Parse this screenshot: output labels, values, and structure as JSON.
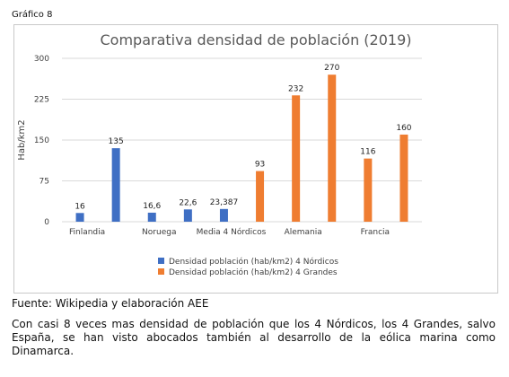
{
  "figure_label": "Gráfico 8",
  "source_text": "Fuente: Wikipedia y elaboración AEE",
  "body_text": "Con casi 8 veces mas densidad de población que los 4 Nórdicos, los 4 Grandes, salvo España, se han visto abocados también al desarrollo de la eólica marina como Dinamarca.",
  "colors": {
    "nordicos": "#3f6fc4",
    "grandes": "#ef7d31"
  },
  "chart_data": {
    "type": "bar",
    "title": "Comparativa densidad de población (2019)",
    "xlabel": "",
    "ylabel": "Hab/km2",
    "ylim": [
      0,
      300
    ],
    "yticks": [
      0,
      75,
      150,
      225,
      300
    ],
    "grid": true,
    "legend_position": "bottom",
    "categories": [
      "Finlandia",
      "",
      "Noruega",
      "",
      "Media 4 Nórdicos",
      "",
      "Alemania",
      "",
      "Francia",
      ""
    ],
    "series": [
      {
        "name": "Densidad población (hab/km2) 4 Nórdicos",
        "color": "#3f6fc4",
        "values": [
          16,
          135,
          16.6,
          22.6,
          23.387,
          null,
          null,
          null,
          null,
          null
        ]
      },
      {
        "name": "Densidad población (hab/km2) 4 Grandes",
        "color": "#ef7d31",
        "values": [
          null,
          null,
          null,
          null,
          null,
          93,
          232,
          270,
          116,
          160
        ]
      }
    ],
    "data_labels": [
      "16",
      "135",
      "16,6",
      "22,6",
      "23,387",
      "93",
      "232",
      "270",
      "116",
      "160"
    ]
  }
}
